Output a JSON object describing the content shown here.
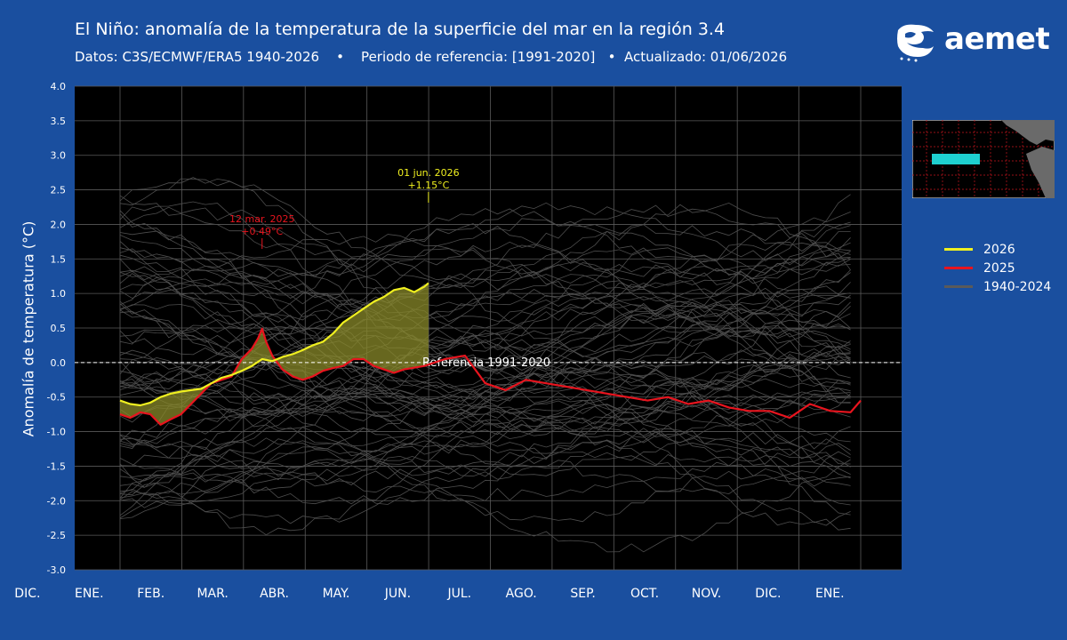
{
  "header": {
    "title": "El Niño: anomalía de la temperatura de la superficie del mar en la región 3.4",
    "subtitle": "Datos: C3S/ECMWF/ERA5 1940-2026    •    Periodo de referencia: [1991-2020]   •  Actualizado: 01/06/2026"
  },
  "logo": {
    "text": "aemet"
  },
  "colors": {
    "background": "#1a4f9f",
    "plot_bg": "#000000",
    "series_2026": "#f0f020",
    "series_2025": "#e8141e",
    "historical": "#5a5a5a",
    "fill": "#8a8a2a"
  },
  "chart_data": {
    "type": "line",
    "ylabel": "Anomalía de temperatura (°C)",
    "ylim": [
      -3.0,
      4.0
    ],
    "yticks": [
      "4.0",
      "3.5",
      "3.0",
      "2.5",
      "2.0",
      "1.5",
      "1.0",
      "0.5",
      "0.0",
      "-0.5",
      "-1.0",
      "-1.5",
      "-2.0",
      "-2.5",
      "-3.0"
    ],
    "month_labels": [
      "DIC.",
      "ENE.",
      "FEB.",
      "MAR.",
      "ABR.",
      "MAY.",
      "JUN.",
      "JUL.",
      "AGO.",
      "SEP.",
      "OCT.",
      "NOV.",
      "DIC.",
      "ENE."
    ],
    "grid": true,
    "reference_line": {
      "value": 0.0,
      "label": "Referencia 1991-2020"
    },
    "legend_position": "right",
    "series": [
      {
        "name": "2026",
        "x": [
          0,
          5,
          10,
          15,
          20,
          25,
          30,
          35,
          40,
          45,
          50,
          55,
          60,
          65,
          70,
          75,
          80,
          85,
          90,
          95,
          100,
          105,
          110,
          115,
          120,
          125,
          130,
          135,
          140,
          145,
          150,
          152
        ],
        "values": [
          -0.55,
          -0.6,
          -0.62,
          -0.58,
          -0.5,
          -0.45,
          -0.42,
          -0.4,
          -0.38,
          -0.3,
          -0.22,
          -0.18,
          -0.12,
          -0.05,
          0.05,
          0.02,
          0.08,
          0.12,
          0.18,
          0.25,
          0.3,
          0.42,
          0.58,
          0.68,
          0.78,
          0.88,
          0.95,
          1.05,
          1.08,
          1.02,
          1.1,
          1.15
        ]
      },
      {
        "name": "2025",
        "x": [
          0,
          5,
          10,
          15,
          20,
          25,
          30,
          35,
          40,
          45,
          50,
          55,
          60,
          65,
          68,
          70,
          72,
          75,
          80,
          85,
          90,
          95,
          100,
          105,
          110,
          115,
          120,
          125,
          130,
          135,
          140,
          150,
          160,
          170,
          180,
          190,
          200,
          210,
          220,
          230,
          240,
          250,
          260,
          270,
          280,
          290,
          300,
          310,
          320,
          330,
          340,
          350,
          360,
          365
        ],
        "values": [
          -0.75,
          -0.8,
          -0.72,
          -0.75,
          -0.9,
          -0.82,
          -0.75,
          -0.6,
          -0.45,
          -0.3,
          -0.25,
          -0.2,
          0.05,
          0.2,
          0.35,
          0.49,
          0.3,
          0.1,
          -0.1,
          -0.2,
          -0.25,
          -0.2,
          -0.12,
          -0.08,
          -0.05,
          0.05,
          0.05,
          -0.05,
          -0.1,
          -0.15,
          -0.1,
          -0.05,
          0.05,
          0.1,
          -0.3,
          -0.4,
          -0.25,
          -0.3,
          -0.35,
          -0.4,
          -0.45,
          -0.5,
          -0.55,
          -0.5,
          -0.6,
          -0.55,
          -0.65,
          -0.7,
          -0.7,
          -0.8,
          -0.6,
          -0.7,
          -0.72,
          -0.55
        ]
      },
      {
        "name": "1940-2024"
      }
    ],
    "annotations": [
      {
        "series": "2025",
        "x": 70,
        "y": 0.49,
        "text_date": "12 mar. 2025",
        "text_value": "+0.49°C"
      },
      {
        "series": "2026",
        "x": 152,
        "y": 1.15,
        "text_date": "01 jun. 2026",
        "text_value": "+1.15°C"
      }
    ]
  }
}
